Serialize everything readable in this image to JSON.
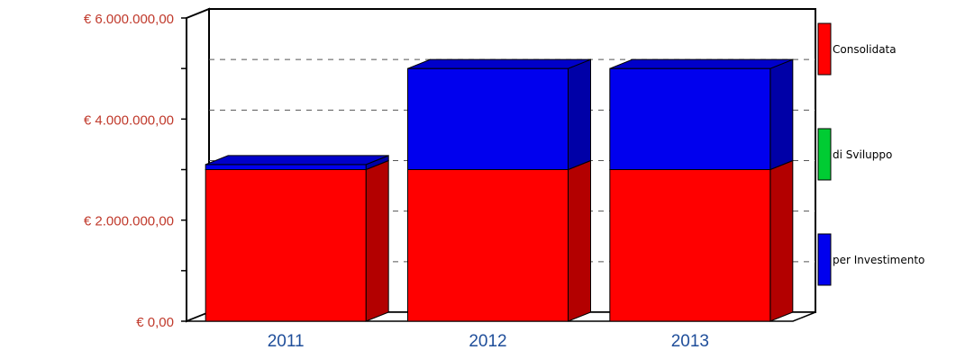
{
  "chart_data": {
    "type": "bar",
    "stacked": true,
    "three_d": true,
    "categories": [
      "2011",
      "2012",
      "2013"
    ],
    "series": [
      {
        "name": "Consolidata",
        "color": "#ff0000",
        "values": [
          3000000,
          3000000,
          3000000
        ]
      },
      {
        "name": "di Sviluppo",
        "color": "#00cc33",
        "values": [
          0,
          0,
          0
        ]
      },
      {
        "name": "per Investimento",
        "color": "#0000ee",
        "values": [
          100000,
          2000000,
          2000000
        ]
      }
    ],
    "ylim": [
      0,
      6000000
    ],
    "yticks": [
      {
        "value": 0,
        "label": "€ 0,00"
      },
      {
        "value": 2000000,
        "label": "€ 2.000.000,00"
      },
      {
        "value": 4000000,
        "label": "€ 4.000.000,00"
      },
      {
        "value": 6000000,
        "label": "€ 6.000.000,00"
      }
    ],
    "grid": "dashed",
    "legend_position": "right",
    "title": "",
    "xlabel": "",
    "ylabel": ""
  }
}
